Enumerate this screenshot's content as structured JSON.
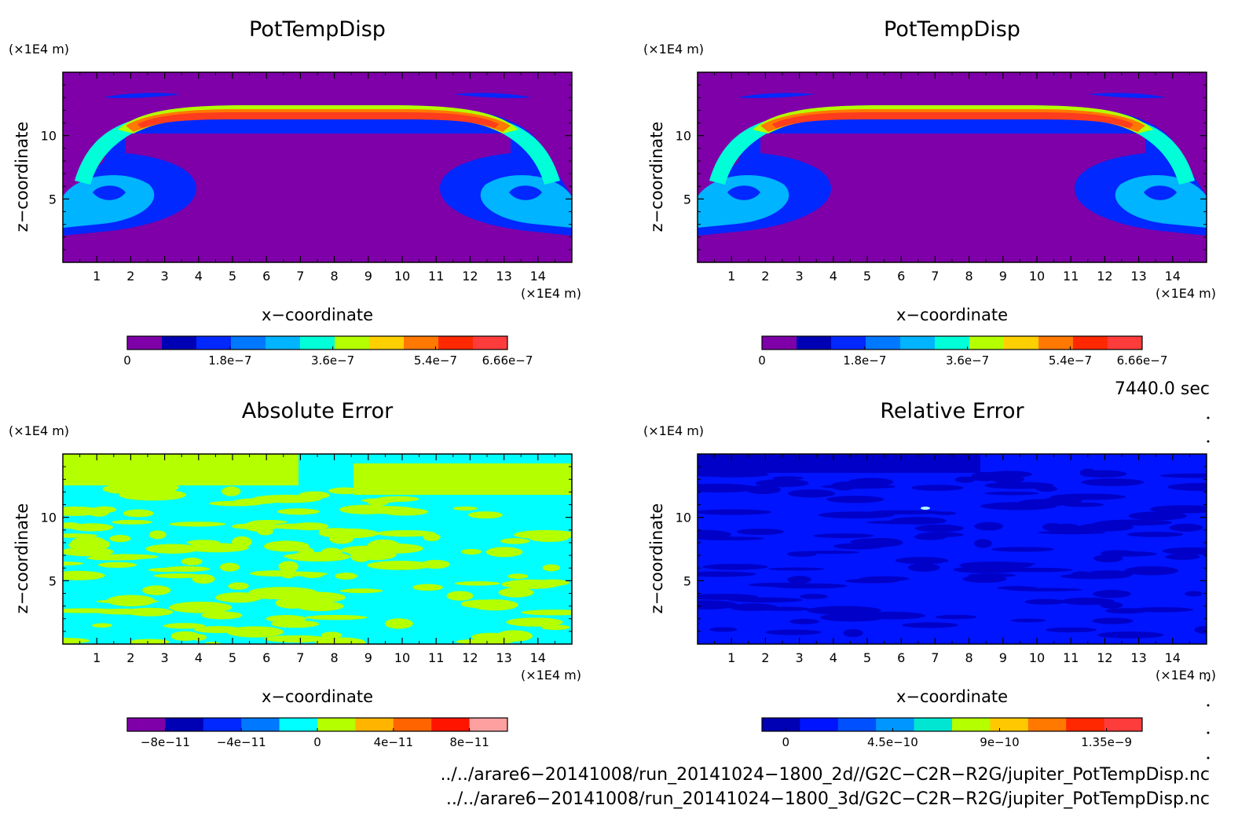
{
  "chart_data": [
    {
      "type": "heatmap",
      "title": "PotTempDisp",
      "xlabel": "x−coordinate",
      "ylabel": "z−coordinate",
      "x_unit": "(×1E4 m)",
      "y_unit": "(×1E4 m)",
      "xlim": [
        0,
        15
      ],
      "ylim": [
        0,
        15
      ],
      "x_ticks": [
        "1",
        "2",
        "3",
        "4",
        "5",
        "6",
        "7",
        "8",
        "9",
        "10",
        "11",
        "12",
        "13",
        "14"
      ],
      "y_ticks": [
        "5",
        "10"
      ],
      "colorbar": {
        "min": 0,
        "max": 6.66e-07,
        "tick_labels": [
          "0",
          "1.8e−7",
          "3.6e−7",
          "5.4e−7",
          "6.66e−7"
        ],
        "colors": [
          "#7f00a8",
          "#0000b4",
          "#0028ff",
          "#0078ff",
          "#00b4ff",
          "#00ffd8",
          "#b4ff00",
          "#ffd000",
          "#ff7800",
          "#ff2800",
          "#ff3c3c"
        ]
      },
      "background_color": "#7f00a8"
    },
    {
      "type": "heatmap",
      "title": "PotTempDisp",
      "xlabel": "x−coordinate",
      "ylabel": "z−coordinate",
      "x_unit": "(×1E4 m)",
      "y_unit": "(×1E4 m)",
      "xlim": [
        0,
        15
      ],
      "ylim": [
        0,
        15
      ],
      "x_ticks": [
        "1",
        "2",
        "3",
        "4",
        "5",
        "6",
        "7",
        "8",
        "9",
        "10",
        "11",
        "12",
        "13",
        "14"
      ],
      "y_ticks": [
        "5",
        "10"
      ],
      "colorbar": {
        "min": 0,
        "max": 6.66e-07,
        "tick_labels": [
          "0",
          "1.8e−7",
          "3.6e−7",
          "5.4e−7",
          "6.66e−7"
        ],
        "colors": [
          "#7f00a8",
          "#0000b4",
          "#0028ff",
          "#0078ff",
          "#00b4ff",
          "#00ffd8",
          "#b4ff00",
          "#ffd000",
          "#ff7800",
          "#ff2800",
          "#ff3c3c"
        ]
      },
      "background_color": "#7f00a8"
    },
    {
      "type": "heatmap",
      "title": "Absolute Error",
      "xlabel": "x−coordinate",
      "ylabel": "z−coordinate",
      "x_unit": "(×1E4 m)",
      "y_unit": "(×1E4 m)",
      "xlim": [
        0,
        15
      ],
      "ylim": [
        0,
        15
      ],
      "x_ticks": [
        "1",
        "2",
        "3",
        "4",
        "5",
        "6",
        "7",
        "8",
        "9",
        "10",
        "11",
        "12",
        "13",
        "14"
      ],
      "y_ticks": [
        "5",
        "10"
      ],
      "colorbar": {
        "min": -1e-10,
        "max": 1e-10,
        "tick_labels": [
          "−8e−11",
          "−4e−11",
          "0",
          "4e−11",
          "8e−11"
        ],
        "colors": [
          "#7f00a8",
          "#0000b4",
          "#0028ff",
          "#0078ff",
          "#00ffff",
          "#b4ff00",
          "#ffb400",
          "#ff6400",
          "#ff1400",
          "#ffa0a0"
        ]
      },
      "background_color": "#00ffff"
    },
    {
      "type": "heatmap",
      "title": "Relative Error",
      "xlabel": "x−coordinate",
      "ylabel": "z−coordinate",
      "x_unit": "(×1E4 m)",
      "y_unit": "(×1E4 m)",
      "xlim": [
        0,
        15
      ],
      "ylim": [
        0,
        15
      ],
      "x_ticks": [
        "1",
        "2",
        "3",
        "4",
        "5",
        "6",
        "7",
        "8",
        "9",
        "10",
        "11",
        "12",
        "13",
        "14"
      ],
      "y_ticks": [
        "5",
        "10"
      ],
      "colorbar": {
        "min": -1e-10,
        "max": 1.5e-09,
        "tick_labels": [
          "0",
          "4.5e−10",
          "9e−10",
          "1.35e−9"
        ],
        "colors": [
          "#0000b4",
          "#0014ff",
          "#0050ff",
          "#0096ff",
          "#00e6d2",
          "#b4ff00",
          "#ffc800",
          "#ff7800",
          "#ff2800",
          "#ff3c3c"
        ]
      },
      "background_color": "#0014ff"
    }
  ],
  "time_stamp": "7440.0 sec",
  "file_paths": [
    "../../arare6−20141008/run_20141024−1800_2d//G2C−C2R−R2G/jupiter_PotTempDisp.nc",
    "../../arare6−20141008/run_20141024−1800_3d/G2C−C2R−R2G/jupiter_PotTempDisp.nc"
  ]
}
